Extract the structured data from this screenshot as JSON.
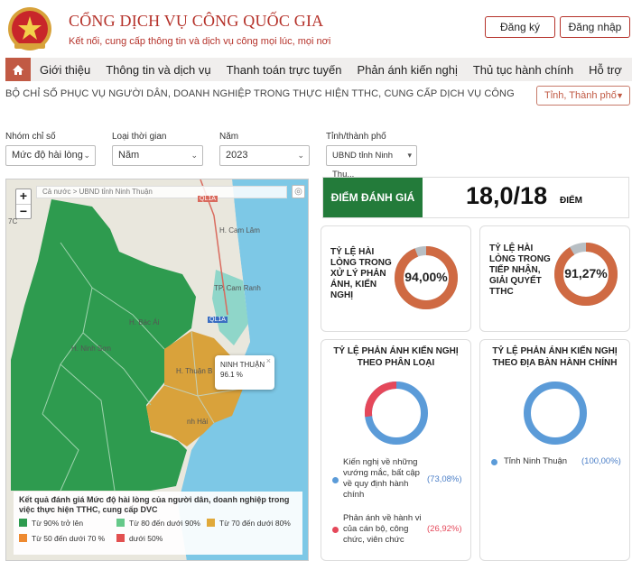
{
  "header": {
    "title": "CỔNG DỊCH VỤ CÔNG QUỐC GIA",
    "subtitle": "Kết nối, cung cấp thông tin và dịch vụ công mọi lúc, mọi nơi",
    "register_label": "Đăng ký",
    "login_label": "Đăng nhập"
  },
  "nav": {
    "items": [
      "Giới thiệu",
      "Thông tin và dịch vụ",
      "Thanh toán trực tuyến",
      "Phản ánh kiến nghị",
      "Thủ tục hành chính",
      "Hỗ trợ"
    ]
  },
  "page": {
    "subtitle": "BỘ CHỈ SỐ PHỤC VỤ NGƯỜI DÂN, DOANH NGHIỆP TRONG THỰC HIỆN TTHC, CUNG CẤP DỊCH VỤ CÔNG",
    "province_select": "Tỉnh, Thành phố"
  },
  "filters": {
    "group_label": "Nhóm chỉ số",
    "group_value": "Mức độ hài lòng",
    "period_label": "Loại thời gian",
    "period_value": "Năm",
    "year_label": "Năm",
    "year_value": "2023",
    "province_label": "Tỉnh/thành phố",
    "province_value": "UBND tỉnh Ninh Thu..."
  },
  "map": {
    "zoom_in": "+",
    "zoom_out": "−",
    "breadcrumb": "Cả nước > UBND tỉnh Ninh Thuận",
    "labels": {
      "ql1a_top": "QL1A",
      "cam_lam": "H. Cam Lâm",
      "cam_ranh": "TP. Cam Ranh",
      "ql1a_mid": "QL1A",
      "bac_ai": "H. Bác Ái",
      "ninh_son": "H. Ninh Sơn",
      "thuan_bac": "H. Thuận B",
      "ninh_hai": "nh Hải",
      "tc": "7C"
    },
    "popup": {
      "name": "NINH THUẬN",
      "value": "96.1 %",
      "close": "×"
    },
    "legend": {
      "title": "Kết quả đánh giá Mức độ hài lòng của người dân, doanh nghiệp trong việc thực hiện TTHC, cung cấp DVC",
      "items": [
        {
          "label": "Từ 90% trở lên",
          "color": "#2e9b4f"
        },
        {
          "label": "Từ 80 đến dưới 90%",
          "color": "#66c98a"
        },
        {
          "label": "Từ 70 đến dưới 80%",
          "color": "#e0a93a"
        },
        {
          "label": "Từ 50 đến dưới 70 %",
          "color": "#ee8a30"
        },
        {
          "label": "dưới 50%",
          "color": "#e25050"
        }
      ]
    }
  },
  "score": {
    "label": "ĐIỂM ĐÁNH GIÁ",
    "value": "18,0/18",
    "unit": "ĐIỂM"
  },
  "cards": {
    "handling": {
      "label": "TỶ LỆ HÀI LÒNG TRONG XỬ LÝ PHẢN ÁNH, KIẾN NGHỊ",
      "percent_text": "94,00%",
      "percent": 94.0
    },
    "reception": {
      "label": "TỶ LỆ HÀI LÒNG TRONG TIẾP NHẬN, GIẢI QUYẾT TTHC",
      "percent_text": "91,27%",
      "percent": 91.27
    },
    "by_type": {
      "title": "TỶ LỆ PHẢN ÁNH KIẾN NGHỊ THEO PHÂN LOẠI",
      "items": [
        {
          "label": "Kiến nghị về những vướng mắc, bất cập về quy định hành chính",
          "percent_text": "(73,08%)",
          "percent": 73.08,
          "color": "#5b9bd8"
        },
        {
          "label": "Phản ánh về hành vi của cán bộ, công chức, viên chức",
          "percent_text": "(26,92%)",
          "percent": 26.92,
          "color": "#e5485a"
        }
      ]
    },
    "by_area": {
      "title": "TỶ LỆ PHẢN ÁNH KIẾN NGHỊ THEO ĐỊA BÀN HÀNH CHÍNH",
      "items": [
        {
          "label": "Tỉnh Ninh Thuận",
          "percent_text": "(100,00%)",
          "percent": 100.0,
          "color": "#5b9bd8"
        }
      ]
    }
  },
  "colors": {
    "brand": "#b5322a",
    "nav_home": "#c15a44",
    "score_green": "#237b3a",
    "donut_orange": "#cf6a43",
    "donut_gray": "#b8bfc4",
    "donut_blue": "#5b9bd8",
    "donut_red": "#e5485a"
  }
}
